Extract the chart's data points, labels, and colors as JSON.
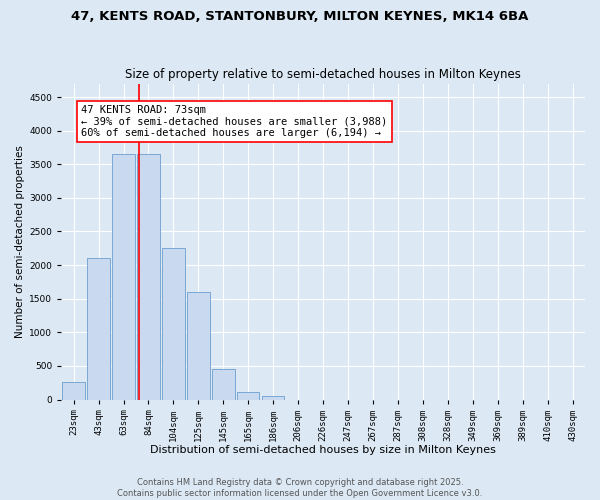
{
  "title1": "47, KENTS ROAD, STANTONBURY, MILTON KEYNES, MK14 6BA",
  "title2": "Size of property relative to semi-detached houses in Milton Keynes",
  "xlabel": "Distribution of semi-detached houses by size in Milton Keynes",
  "ylabel": "Number of semi-detached properties",
  "categories": [
    "23sqm",
    "43sqm",
    "63sqm",
    "84sqm",
    "104sqm",
    "125sqm",
    "145sqm",
    "165sqm",
    "186sqm",
    "206sqm",
    "226sqm",
    "247sqm",
    "267sqm",
    "287sqm",
    "308sqm",
    "328sqm",
    "349sqm",
    "369sqm",
    "389sqm",
    "410sqm",
    "430sqm"
  ],
  "values": [
    255,
    2100,
    3650,
    3650,
    2250,
    1600,
    450,
    105,
    55,
    0,
    0,
    0,
    0,
    0,
    0,
    0,
    0,
    0,
    0,
    0,
    0
  ],
  "bar_color": "#c9d9f0",
  "bar_edge_color": "#7aa8d4",
  "vline_x": 2.62,
  "vline_color": "red",
  "annotation_title": "47 KENTS ROAD: 73sqm",
  "annotation_line1": "← 39% of semi-detached houses are smaller (3,988)",
  "annotation_line2": "60% of semi-detached houses are larger (6,194) →",
  "annotation_box_color": "white",
  "annotation_box_edge": "red",
  "ylim": [
    0,
    4700
  ],
  "yticks": [
    0,
    500,
    1000,
    1500,
    2000,
    2500,
    3000,
    3500,
    4000,
    4500
  ],
  "background_color": "#dce9f5",
  "plot_bg_color": "#dce9f5",
  "footer": "Contains HM Land Registry data © Crown copyright and database right 2025.\nContains public sector information licensed under the Open Government Licence v3.0.",
  "title1_fontsize": 9.5,
  "title2_fontsize": 8.5,
  "xlabel_fontsize": 8,
  "ylabel_fontsize": 7.5,
  "tick_fontsize": 6.5,
  "annotation_fontsize": 7.5,
  "footer_fontsize": 6
}
